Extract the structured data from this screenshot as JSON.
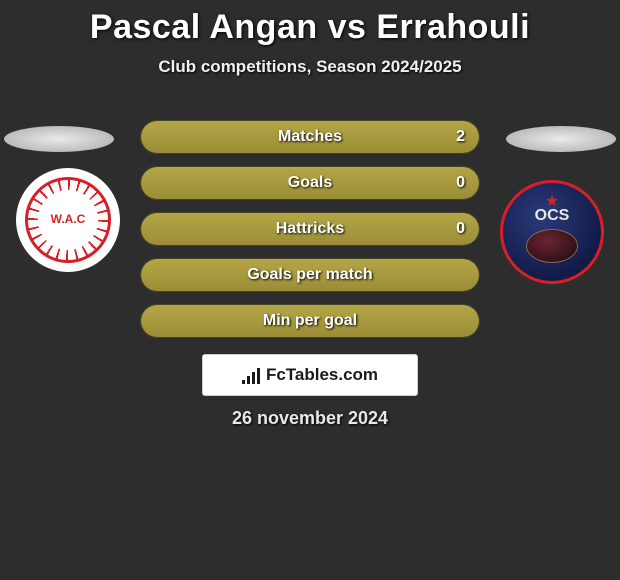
{
  "header": {
    "title": "Pascal Angan vs Errahouli",
    "subtitle": "Club competitions, Season 2024/2025"
  },
  "colors": {
    "background": "#2d2d2d",
    "pill_fill": "#a89a3e",
    "text": "#ffffff"
  },
  "stats": {
    "rows": [
      {
        "label": "Matches",
        "left": "",
        "right": "2",
        "fill_pct": 100
      },
      {
        "label": "Goals",
        "left": "",
        "right": "0",
        "fill_pct": 100
      },
      {
        "label": "Hattricks",
        "left": "",
        "right": "0",
        "fill_pct": 100
      },
      {
        "label": "Goals per match",
        "left": "",
        "right": "",
        "fill_pct": 100
      },
      {
        "label": "Min per goal",
        "left": "",
        "right": "",
        "fill_pct": 100
      }
    ]
  },
  "crests": {
    "left": {
      "label": "W.A.C",
      "primary": "#d62027",
      "secondary": "#ffffff"
    },
    "right": {
      "label": "OCS",
      "primary": "#152050",
      "secondary": "#d62027"
    }
  },
  "brand": {
    "text": "FcTables.com",
    "bars": [
      4,
      8,
      12,
      16
    ]
  },
  "date": "26 november 2024"
}
